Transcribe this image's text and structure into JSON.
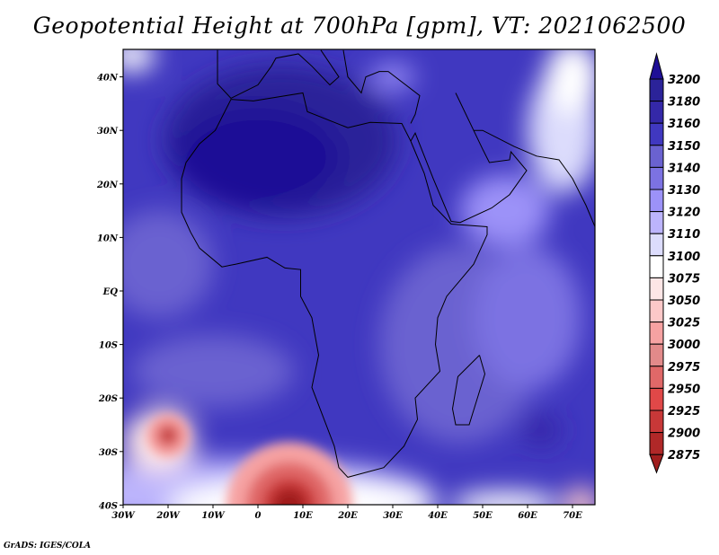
{
  "title": "Geopotential Height at 700hPa [gpm], VT: 2021062500",
  "credit": "GrADS: IGES/COLA",
  "map": {
    "region": "Africa",
    "lon_range": [
      -30,
      75
    ],
    "lat_range": [
      -40,
      45
    ],
    "x_ticks": [
      "30W",
      "20W",
      "10W",
      "0",
      "10E",
      "20E",
      "30E",
      "40E",
      "50E",
      "60E",
      "70E"
    ],
    "y_ticks": [
      "40S",
      "30S",
      "20S",
      "10S",
      "EQ",
      "10N",
      "20N",
      "30N",
      "40N"
    ]
  },
  "colorbar": {
    "labels": [
      "3200",
      "3180",
      "3160",
      "3150",
      "3140",
      "3130",
      "3120",
      "3110",
      "3100",
      "3075",
      "3050",
      "3025",
      "3000",
      "2975",
      "2950",
      "2925",
      "2900",
      "2875"
    ],
    "colors": [
      "#1f0f96",
      "#2b2399",
      "#3428a8",
      "#4038c0",
      "#6a62d0",
      "#7c72e2",
      "#9c92f8",
      "#bcb4fc",
      "#dcdcfc",
      "#ffffff",
      "#fde6e6",
      "#fcc8c8",
      "#f6a2a2",
      "#e28a8a",
      "#e06868",
      "#e04848",
      "#c83838",
      "#b02828",
      "#a01e1e"
    ]
  }
}
